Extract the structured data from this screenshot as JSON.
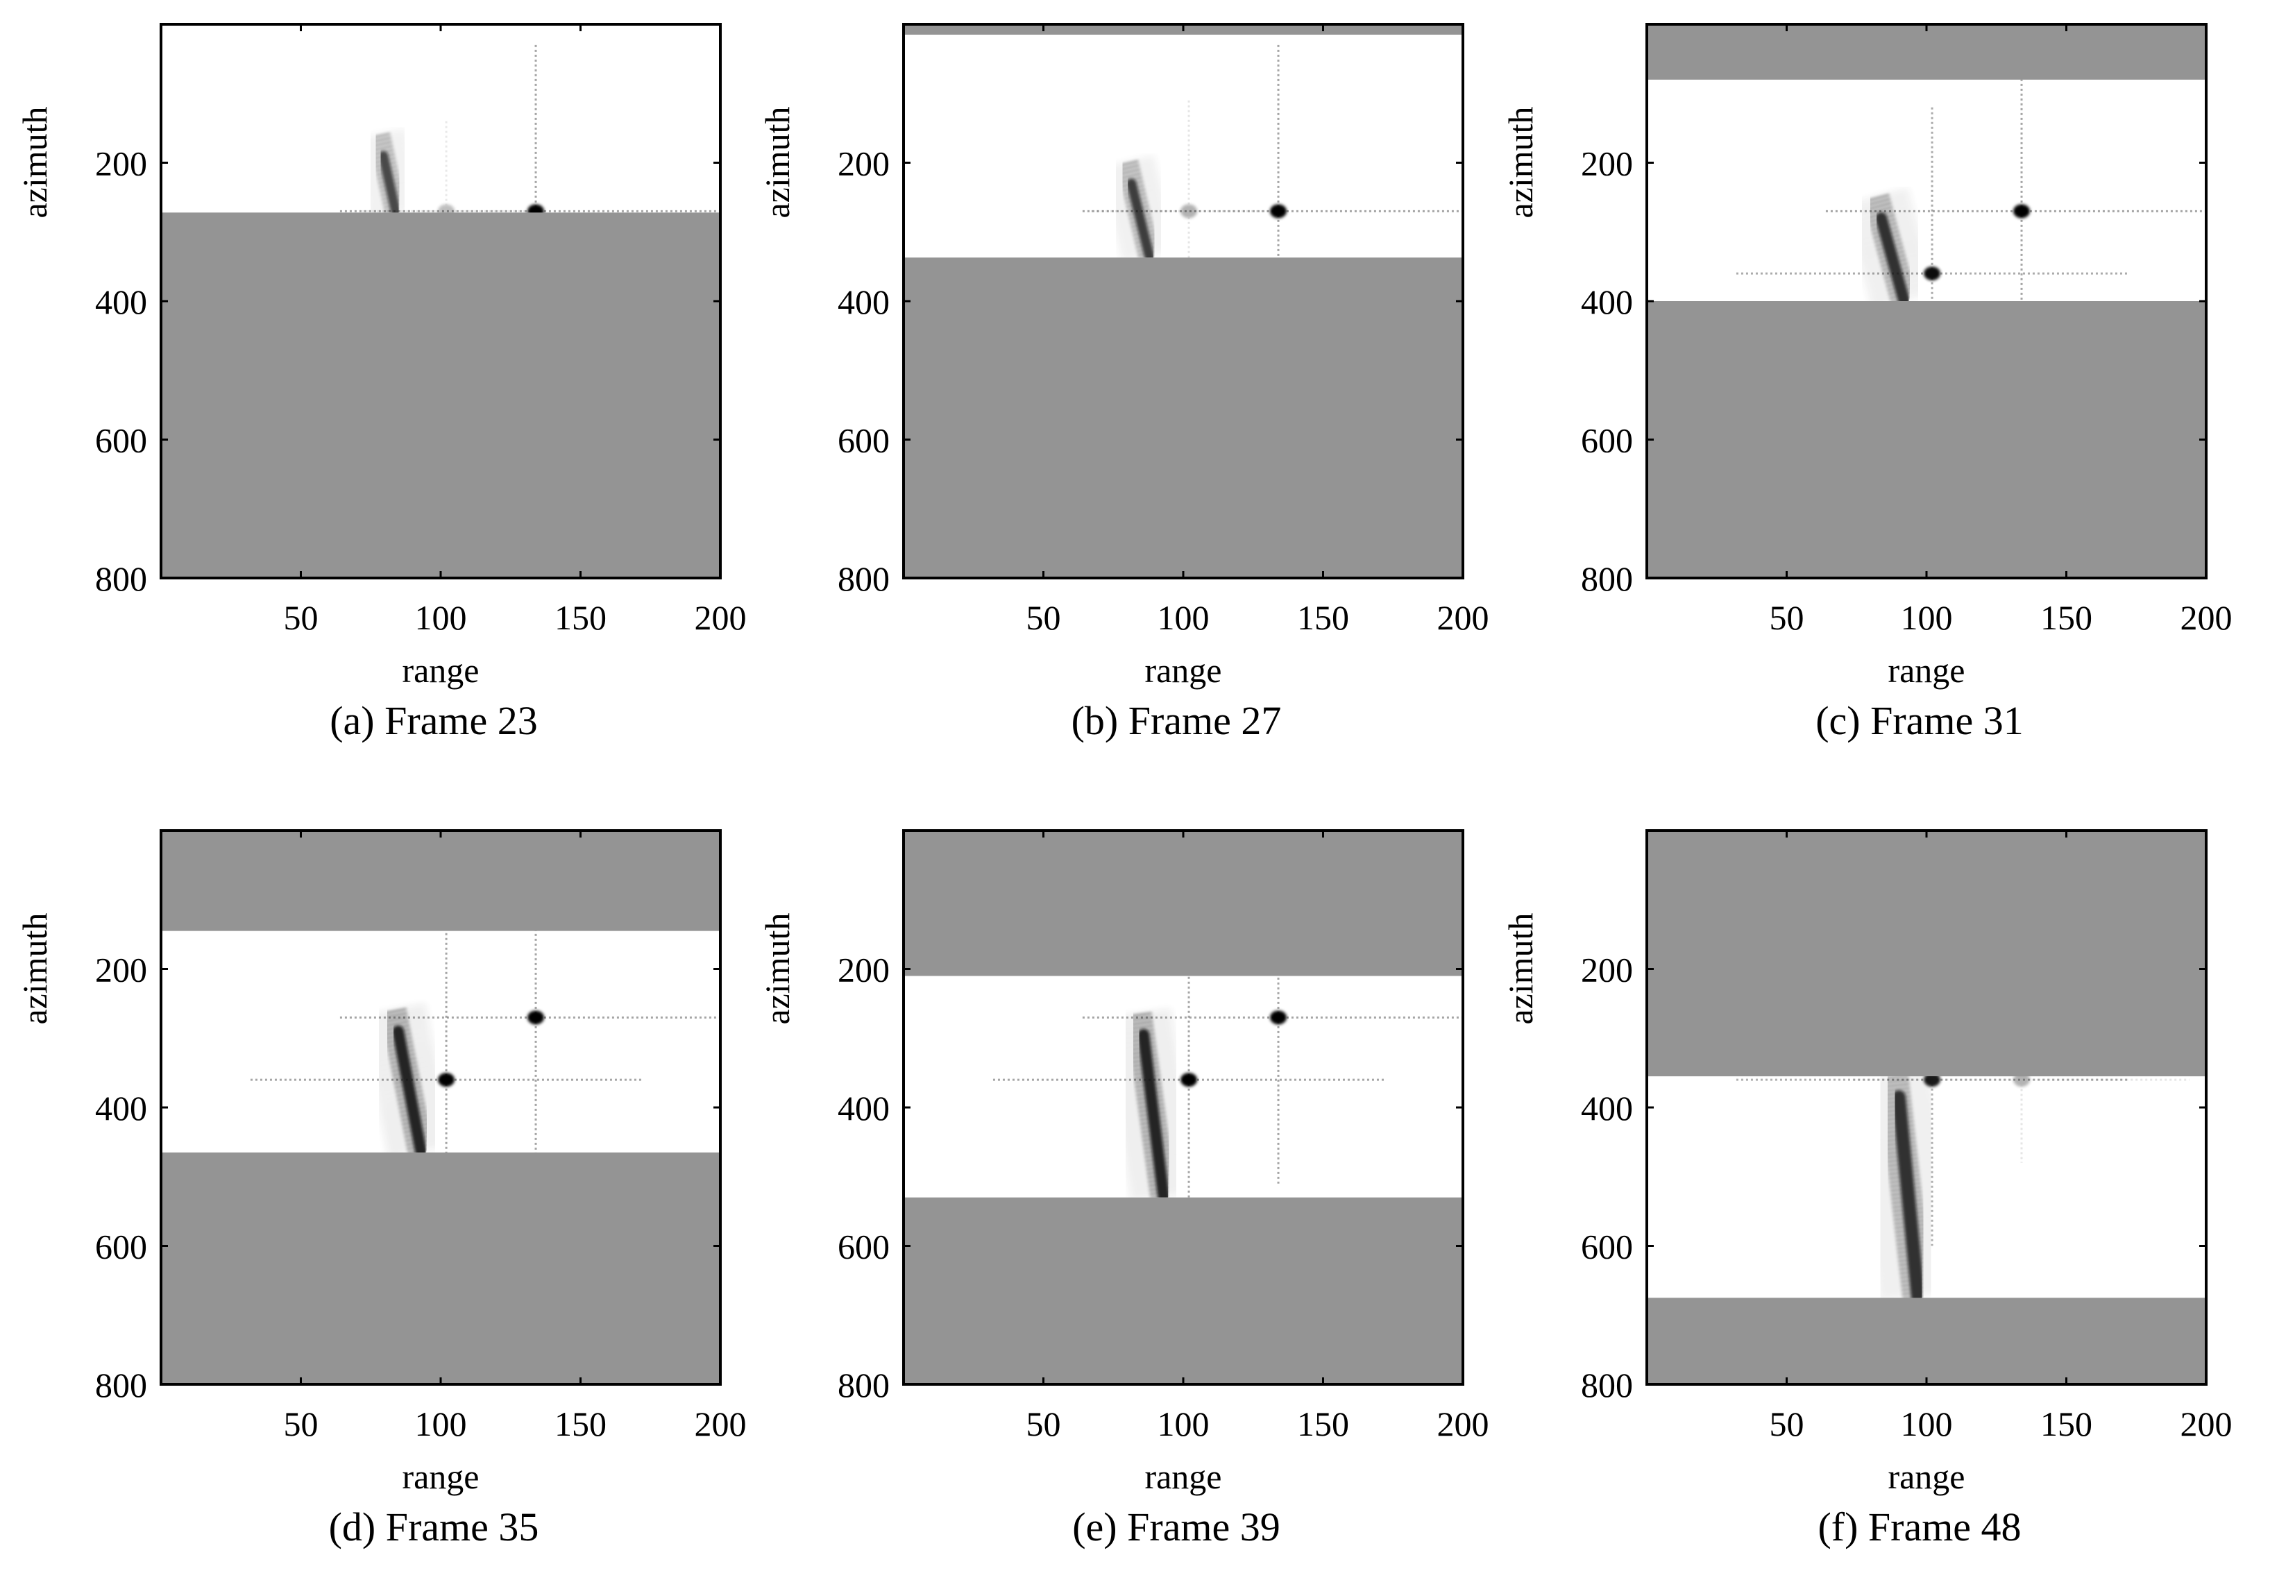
{
  "figure": {
    "colors": {
      "masked": "#949494",
      "background": "#ffffff",
      "target": "#000000"
    },
    "panels": [
      {
        "caption": "(a) Frame 23",
        "chart_data": {
          "type": "heatmap",
          "xlabel": "range",
          "ylabel": "azimuth",
          "xlim": [
            0,
            200
          ],
          "ylim": [
            800,
            0
          ],
          "xticks": [
            50,
            100,
            150,
            200
          ],
          "yticks": [
            200,
            400,
            600,
            800
          ],
          "visible_window": [
            0,
            272
          ],
          "targets": [
            {
              "kind": "point",
              "range": 134,
              "azimuth": 270,
              "intensity": 1.0,
              "arm_h": 70,
              "arm_v": 240
            },
            {
              "kind": "point",
              "range": 102,
              "azimuth": 270,
              "intensity": 0.25,
              "arm_h": 30,
              "arm_v": 130
            },
            {
              "kind": "streak",
              "range_top": 78,
              "azimuth_top": 160,
              "range_bottom": 84,
              "azimuth_bottom": 272,
              "intensity": 0.75,
              "width": 5
            }
          ]
        }
      },
      {
        "caption": "(b) Frame 27",
        "chart_data": {
          "type": "heatmap",
          "xlabel": "range",
          "ylabel": "azimuth",
          "xlim": [
            0,
            200
          ],
          "ylim": [
            800,
            0
          ],
          "xticks": [
            50,
            100,
            150,
            200
          ],
          "yticks": [
            200,
            400,
            600,
            800
          ],
          "visible_window": [
            15,
            337
          ],
          "targets": [
            {
              "kind": "point",
              "range": 134,
              "azimuth": 270,
              "intensity": 1.0,
              "arm_h": 70,
              "arm_v": 240
            },
            {
              "kind": "point",
              "range": 102,
              "azimuth": 270,
              "intensity": 0.3,
              "arm_h": 35,
              "arm_v": 160
            },
            {
              "kind": "streak",
              "range_top": 80,
              "azimuth_top": 200,
              "range_bottom": 88,
              "azimuth_bottom": 337,
              "intensity": 0.8,
              "width": 5
            }
          ]
        }
      },
      {
        "caption": "(c) Frame 31",
        "chart_data": {
          "type": "heatmap",
          "xlabel": "range",
          "ylabel": "azimuth",
          "xlim": [
            0,
            200
          ],
          "ylim": [
            800,
            0
          ],
          "xticks": [
            50,
            100,
            150,
            200
          ],
          "yticks": [
            200,
            400,
            600,
            800
          ],
          "visible_window": [
            80,
            400
          ],
          "targets": [
            {
              "kind": "point",
              "range": 134,
              "azimuth": 270,
              "intensity": 1.0,
              "arm_h": 70,
              "arm_v": 240
            },
            {
              "kind": "point",
              "range": 102,
              "azimuth": 360,
              "intensity": 0.95,
              "arm_h": 70,
              "arm_v": 240
            },
            {
              "kind": "streak",
              "range_top": 82,
              "azimuth_top": 250,
              "range_bottom": 92,
              "azimuth_bottom": 400,
              "intensity": 0.85,
              "width": 6
            }
          ]
        }
      },
      {
        "caption": "(d) Frame 35",
        "chart_data": {
          "type": "heatmap",
          "xlabel": "range",
          "ylabel": "azimuth",
          "xlim": [
            0,
            200
          ],
          "ylim": [
            800,
            0
          ],
          "xticks": [
            50,
            100,
            150,
            200
          ],
          "yticks": [
            200,
            400,
            600,
            800
          ],
          "visible_window": [
            145,
            465
          ],
          "targets": [
            {
              "kind": "point",
              "range": 134,
              "azimuth": 270,
              "intensity": 1.0,
              "arm_h": 70,
              "arm_v": 240
            },
            {
              "kind": "point",
              "range": 102,
              "azimuth": 360,
              "intensity": 1.0,
              "arm_h": 70,
              "arm_v": 240
            },
            {
              "kind": "streak",
              "range_top": 83,
              "azimuth_top": 260,
              "range_bottom": 93,
              "azimuth_bottom": 465,
              "intensity": 0.9,
              "width": 6
            }
          ]
        }
      },
      {
        "caption": "(e) Frame 39",
        "chart_data": {
          "type": "heatmap",
          "xlabel": "range",
          "ylabel": "azimuth",
          "xlim": [
            0,
            200
          ],
          "ylim": [
            800,
            0
          ],
          "xticks": [
            50,
            100,
            150,
            200
          ],
          "yticks": [
            200,
            400,
            600,
            800
          ],
          "visible_window": [
            210,
            530
          ],
          "targets": [
            {
              "kind": "point",
              "range": 134,
              "azimuth": 270,
              "intensity": 1.0,
              "arm_h": 70,
              "arm_v": 240
            },
            {
              "kind": "point",
              "range": 102,
              "azimuth": 360,
              "intensity": 1.0,
              "arm_h": 70,
              "arm_v": 240
            },
            {
              "kind": "streak",
              "range_top": 84,
              "azimuth_top": 265,
              "range_bottom": 93,
              "azimuth_bottom": 530,
              "intensity": 0.9,
              "width": 6
            }
          ]
        }
      },
      {
        "caption": "(f) Frame 48",
        "chart_data": {
          "type": "heatmap",
          "xlabel": "range",
          "ylabel": "azimuth",
          "xlim": [
            0,
            200
          ],
          "ylim": [
            800,
            0
          ],
          "xticks": [
            50,
            100,
            150,
            200
          ],
          "yticks": [
            200,
            400,
            600,
            800
          ],
          "visible_window": [
            355,
            675
          ],
          "targets": [
            {
              "kind": "point",
              "range": 134,
              "azimuth": 360,
              "intensity": 0.3,
              "arm_h": 60,
              "arm_v": 120
            },
            {
              "kind": "point",
              "range": 102,
              "azimuth": 360,
              "intensity": 0.9,
              "arm_h": 70,
              "arm_v": 240
            },
            {
              "kind": "streak",
              "range_top": 88,
              "azimuth_top": 355,
              "range_bottom": 97,
              "azimuth_bottom": 675,
              "intensity": 0.85,
              "width": 7
            }
          ]
        }
      }
    ]
  }
}
